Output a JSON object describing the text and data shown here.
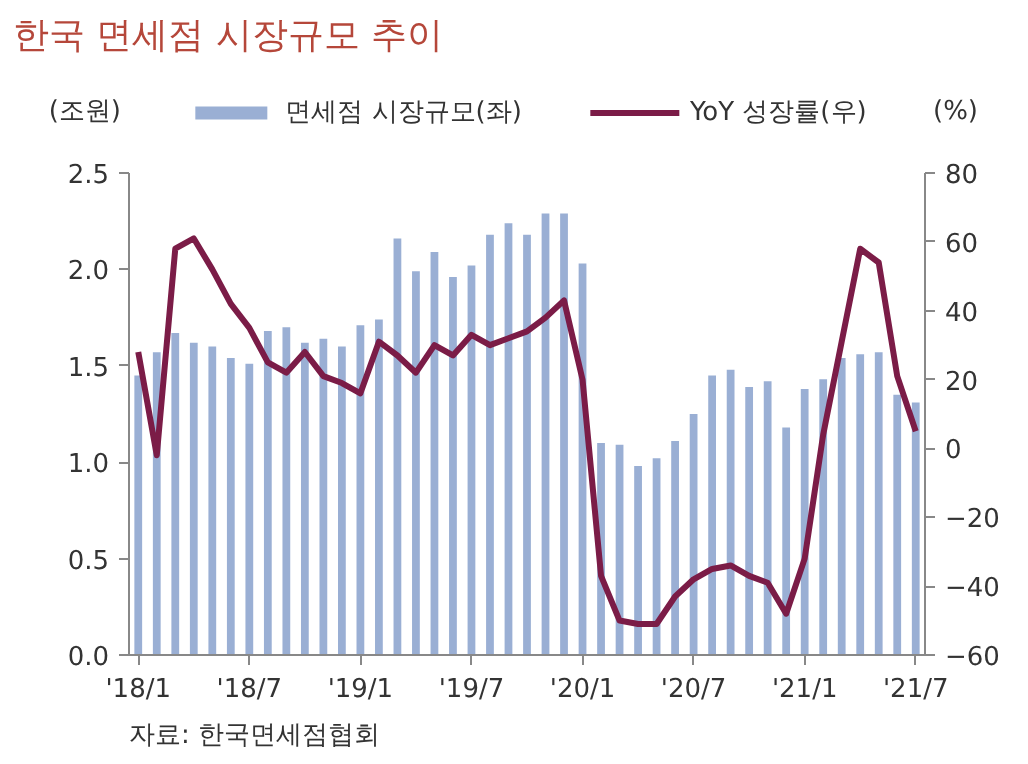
{
  "chart_data": {
    "type": "bar",
    "title": "한국 면세점 시장규모 추이",
    "ylabel": "(조원)",
    "y2label": "(%)",
    "categories": [
      "'18/1",
      null,
      null,
      null,
      null,
      null,
      "'18/7",
      null,
      null,
      null,
      null,
      null,
      "'19/1",
      null,
      null,
      null,
      null,
      null,
      "'19/7",
      null,
      null,
      null,
      null,
      null,
      "'20/1",
      null,
      null,
      null,
      null,
      null,
      "'20/7",
      null,
      null,
      null,
      null,
      null,
      "'21/1",
      null,
      null,
      null,
      null,
      null,
      "'21/7"
    ],
    "series": [
      {
        "name": "면세점 시장규모(좌)",
        "color": "#9aafd4",
        "values": [
          1.45,
          1.57,
          1.67,
          1.62,
          1.6,
          1.54,
          1.51,
          1.68,
          1.7,
          1.62,
          1.64,
          1.6,
          1.71,
          1.74,
          2.16,
          1.99,
          2.09,
          1.96,
          2.02,
          2.18,
          2.24,
          2.18,
          2.29,
          2.29,
          2.03,
          1.1,
          1.09,
          0.98,
          1.02,
          1.11,
          1.25,
          1.45,
          1.48,
          1.39,
          1.42,
          1.18,
          1.38,
          1.43,
          1.54,
          1.56,
          1.57,
          1.35,
          1.31
        ]
      },
      {
        "name": "YoY 성장률(우)",
        "type": "line",
        "axis": "y2",
        "color": "#7b1c47",
        "values": [
          28,
          -2,
          58,
          61,
          52,
          42,
          35,
          25,
          22,
          28,
          21,
          19,
          16,
          31,
          27,
          22,
          30,
          27,
          33,
          30,
          32,
          34,
          38,
          43,
          20,
          -37,
          -50,
          -51,
          -51,
          -43,
          -38,
          -35,
          -34,
          -37,
          -39,
          -48,
          -32,
          4,
          31,
          58,
          54,
          21,
          5
        ]
      }
    ],
    "ylim": [
      0,
      2.5
    ],
    "yticks": [
      {
        "value": 0,
        "label": "0.0"
      },
      {
        "value": 0.5,
        "label": "0.5"
      },
      {
        "value": 1,
        "label": "1.0"
      },
      {
        "value": 1.5,
        "label": "1.5"
      },
      {
        "value": 2,
        "label": "2.0"
      },
      {
        "value": 2.5,
        "label": "2.5"
      }
    ],
    "y2lim": [
      -60,
      80
    ],
    "y2ticks": [
      -60,
      -40,
      -20,
      0,
      20,
      40,
      60,
      80
    ],
    "grid": false,
    "legend": "top",
    "annotations": [
      "자료: 한국면세점협회"
    ]
  }
}
